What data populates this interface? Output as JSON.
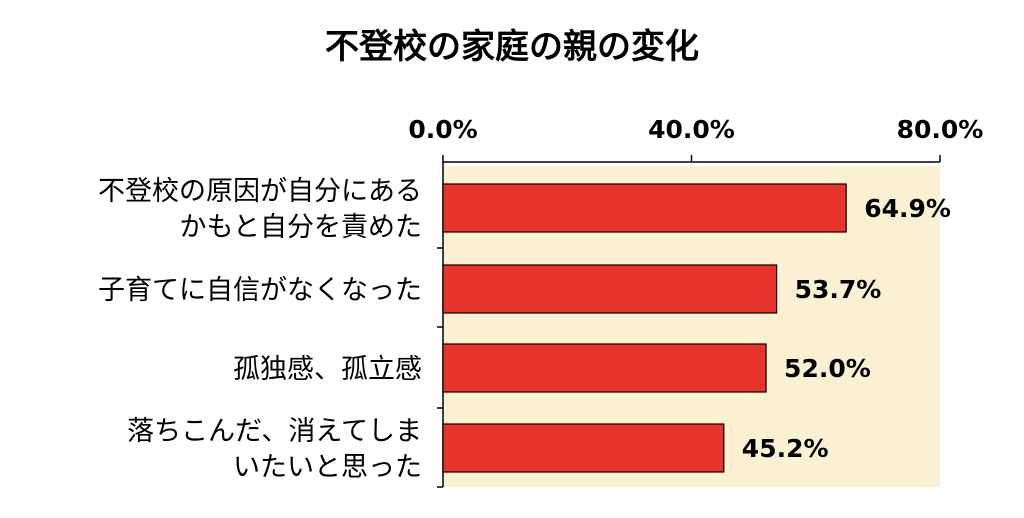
{
  "chart_data": {
    "type": "bar",
    "orientation": "horizontal",
    "title": "不登校の家庭の親の変化",
    "categories": [
      [
        "不登校の原因が自分にある",
        "かもと自分を責めた"
      ],
      [
        "子育てに自信がなくなった"
      ],
      [
        "孤独感、孤立感"
      ],
      [
        "落ちこんだ、消えてしま",
        "いたいと思った"
      ]
    ],
    "values": [
      64.9,
      53.7,
      52.0,
      45.2
    ],
    "value_labels": [
      "64.9%",
      "53.7%",
      "52.0%",
      "45.2%"
    ],
    "xlim": [
      0,
      80
    ],
    "xticks": [
      0,
      40,
      80
    ],
    "xtick_labels": [
      "0.0%",
      "40.0%",
      "80.0%"
    ],
    "axis_position": "top",
    "grid": false,
    "colors": {
      "bar": "#e8342a",
      "bar_border": "#000000",
      "plot_background": "#fbf0d1",
      "axis": "#000000"
    }
  }
}
